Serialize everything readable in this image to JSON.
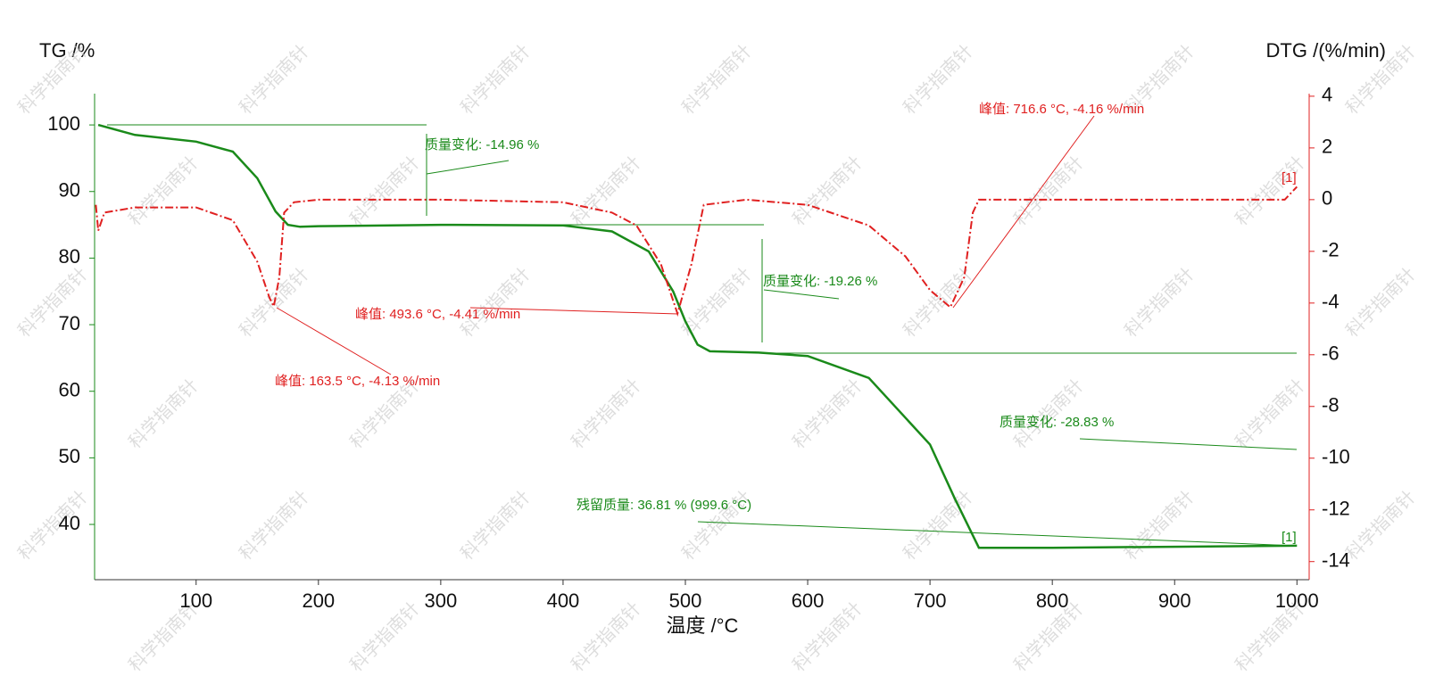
{
  "chart_data": {
    "type": "line",
    "ylabel": "TG /%",
    "y2label": "DTG /(%/min)",
    "xlabel": "温度 /°C",
    "xlim": [
      17,
      1010
    ],
    "xticks": [
      100,
      200,
      300,
      400,
      500,
      600,
      700,
      800,
      900,
      1000
    ],
    "ylim": [
      31.7,
      104.7
    ],
    "yticks": [
      40,
      50,
      60,
      70,
      80,
      90,
      100
    ],
    "y2lim": [
      -14.7,
      4.1
    ],
    "y2ticks": [
      -14,
      -12,
      -10,
      -8,
      -6,
      -4,
      -2,
      0,
      2,
      4
    ],
    "series": [
      {
        "color": "#1a8a1a",
        "label": "[1]",
        "x": [
          20,
          50,
          100,
          130,
          150,
          165,
          175,
          185,
          200,
          300,
          400,
          440,
          470,
          490,
          500,
          510,
          520,
          560,
          600,
          650,
          700,
          720,
          740,
          800,
          1000
        ],
        "values": [
          100,
          98.5,
          97.5,
          96,
          92,
          87,
          85,
          84.7,
          84.8,
          85,
          84.9,
          84,
          81,
          75,
          70.5,
          67,
          66,
          65.8,
          65.3,
          62,
          52,
          44,
          36.5,
          36.5,
          36.8
        ]
      },
      {
        "color": "#e02020",
        "axis": "y2",
        "label": "[1]",
        "x": [
          18,
          20,
          25,
          50,
          100,
          130,
          150,
          160,
          163.5,
          168,
          172,
          180,
          200,
          300,
          400,
          440,
          460,
          480,
          493.6,
          505,
          515,
          550,
          600,
          650,
          680,
          700,
          716.6,
          728,
          735,
          740,
          800,
          990,
          1000
        ],
        "values": [
          -0.2,
          -1.2,
          -0.5,
          -0.3,
          -0.3,
          -0.8,
          -2.4,
          -3.8,
          -4.13,
          -3,
          -0.5,
          -0.1,
          0,
          0,
          -0.1,
          -0.5,
          -1,
          -2.5,
          -4.41,
          -2.5,
          -0.2,
          0,
          -0.2,
          -1,
          -2.2,
          -3.5,
          -4.16,
          -3,
          -0.5,
          0,
          0,
          0,
          0.5
        ]
      }
    ],
    "annotations": [
      "质量变化: -14.96 %",
      "质量变化: -19.26 %",
      "质量变化: -28.83 %",
      "残留质量: 36.81 % (999.6 °C)",
      "峰值: 163.5 °C, -4.13 %/min",
      "峰值: 493.6 °C, -4.41 %/min",
      "峰值: 716.6 °C, -4.16 %/min"
    ],
    "watermark": "科学指南针"
  }
}
